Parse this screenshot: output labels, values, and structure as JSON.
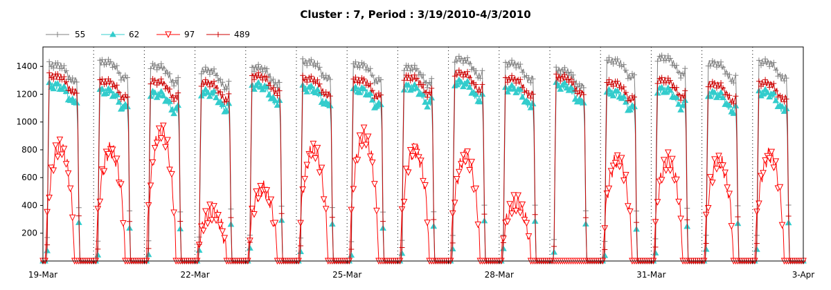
{
  "chart_data": {
    "type": "line",
    "title": "Cluster : 7, Period : 3/19/2010-4/3/2010",
    "xlabel": "",
    "ylabel": "",
    "x_start": "2010-03-19",
    "x_end": "2010-04-03",
    "xlim": [
      0,
      15
    ],
    "ylim": [
      0,
      1540
    ],
    "x_ticks": [
      {
        "day": 0,
        "label": "19-Mar"
      },
      {
        "day": 3,
        "label": "22-Mar"
      },
      {
        "day": 6,
        "label": "25-Mar"
      },
      {
        "day": 9,
        "label": "28-Mar"
      },
      {
        "day": 12,
        "label": "31-Mar"
      },
      {
        "day": 15,
        "label": "3-Apr"
      }
    ],
    "y_ticks": [
      200,
      400,
      600,
      800,
      1000,
      1200,
      1400
    ],
    "grid": "dotted vertical lines at day boundaries",
    "legend_position": "top-left",
    "daily_profiles": {
      "s55": [
        1360,
        1380,
        1350,
        1320,
        1340,
        1380,
        1360,
        1340,
        1400,
        1370,
        1320,
        1390,
        1410,
        1370,
        1380
      ],
      "s62": [
        1300,
        1260,
        1240,
        1250,
        1300,
        1280,
        1270,
        1290,
        1320,
        1280,
        1300,
        1250,
        1270,
        1240,
        1250
      ],
      "s97": [
        820,
        800,
        930,
        350,
        520,
        800,
        900,
        800,
        750,
        420,
        0,
        730,
        720,
        720,
        760
      ],
      "s489": [
        1330,
        1290,
        1290,
        1280,
        1330,
        1310,
        1300,
        1320,
        1350,
        1310,
        1320,
        1280,
        1300,
        1270,
        1280
      ]
    },
    "series": [
      {
        "name": "55",
        "color": "#808080",
        "marker": "plus"
      },
      {
        "name": "62",
        "color": "#33cccc",
        "marker": "triangle-up"
      },
      {
        "name": "97",
        "color": "#ff0000",
        "marker": "triangle-down"
      },
      {
        "name": "489",
        "color": "#cc0000",
        "marker": "plus"
      }
    ]
  },
  "legend": [
    {
      "name": "55",
      "color": "#808080"
    },
    {
      "name": "62",
      "color": "#33cccc"
    },
    {
      "name": "97",
      "color": "#ff0000"
    },
    {
      "name": "489",
      "color": "#cc0000"
    }
  ]
}
